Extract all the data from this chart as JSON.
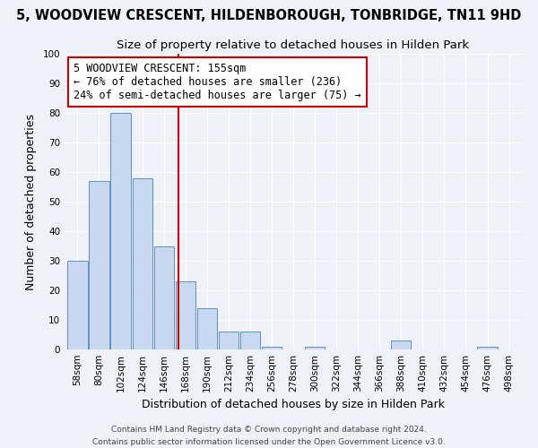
{
  "title": "5, WOODVIEW CRESCENT, HILDENBOROUGH, TONBRIDGE, TN11 9HD",
  "subtitle": "Size of property relative to detached houses in Hilden Park",
  "xlabel": "Distribution of detached houses by size in Hilden Park",
  "ylabel": "Number of detached properties",
  "bar_labels": [
    "58sqm",
    "80sqm",
    "102sqm",
    "124sqm",
    "146sqm",
    "168sqm",
    "190sqm",
    "212sqm",
    "234sqm",
    "256sqm",
    "278sqm",
    "300sqm",
    "322sqm",
    "344sqm",
    "366sqm",
    "388sqm",
    "410sqm",
    "432sqm",
    "454sqm",
    "476sqm",
    "498sqm"
  ],
  "bar_values": [
    30,
    57,
    80,
    58,
    35,
    23,
    14,
    6,
    6,
    1,
    0,
    1,
    0,
    0,
    0,
    3,
    0,
    0,
    0,
    1,
    0
  ],
  "bar_color": "#c8d8ee",
  "bar_edge_color": "#6090c0",
  "vline_x": 4.68,
  "vline_color": "#cc0000",
  "annotation_title": "5 WOODVIEW CRESCENT: 155sqm",
  "annotation_line1": "← 76% of detached houses are smaller (236)",
  "annotation_line2": "24% of semi-detached houses are larger (75) →",
  "annotation_box_color": "#ffffff",
  "annotation_box_edge": "#cc0000",
  "footnote1": "Contains HM Land Registry data © Crown copyright and database right 2024.",
  "footnote2": "Contains public sector information licensed under the Open Government Licence v3.0.",
  "bg_color": "#eef2f8",
  "grid_color": "#ffffff",
  "ylim": [
    0,
    100
  ],
  "yticks": [
    0,
    10,
    20,
    30,
    40,
    50,
    60,
    70,
    80,
    90,
    100
  ],
  "title_fontsize": 10.5,
  "subtitle_fontsize": 9.5,
  "tick_fontsize": 7.5,
  "axis_label_fontsize": 9,
  "footnote_fontsize": 6.5
}
